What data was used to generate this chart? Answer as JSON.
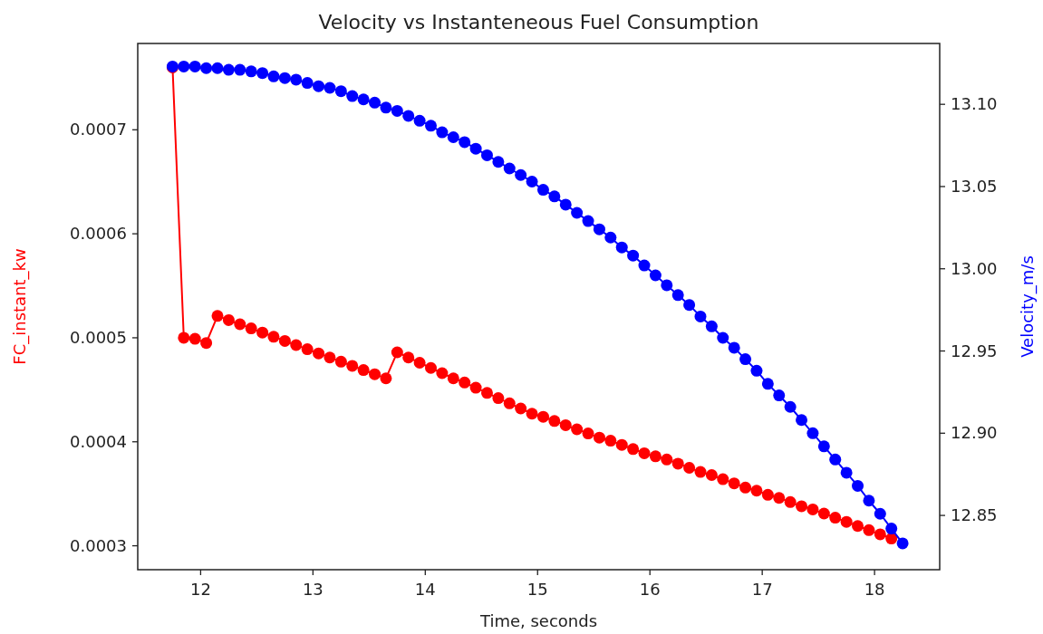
{
  "chart_data": {
    "type": "line",
    "title": "Velocity vs Instanteneous Fuel Consumption",
    "xlabel": "Time, seconds",
    "ylabel": "FC_instant_kw",
    "y2label": "Velocity_m/s",
    "x": [
      11.75,
      11.85,
      11.95,
      12.05,
      12.15,
      12.25,
      12.35,
      12.45,
      12.55,
      12.65,
      12.75,
      12.85,
      12.95,
      13.05,
      13.15,
      13.25,
      13.35,
      13.45,
      13.55,
      13.65,
      13.75,
      13.85,
      13.95,
      14.05,
      14.15,
      14.25,
      14.35,
      14.45,
      14.55,
      14.65,
      14.75,
      14.85,
      14.95,
      15.05,
      15.15,
      15.25,
      15.35,
      15.45,
      15.55,
      15.65,
      15.75,
      15.85,
      15.95,
      16.05,
      16.15,
      16.25,
      16.35,
      16.45,
      16.55,
      16.65,
      16.75,
      16.85,
      16.95,
      17.05,
      17.15,
      17.25,
      17.35,
      17.45,
      17.55,
      17.65,
      17.75,
      17.85,
      17.95,
      18.05,
      18.15,
      18.25
    ],
    "series": [
      {
        "color": "#ff0000",
        "values": [
          0.00076,
          0.0005,
          0.000499,
          0.000495,
          0.000521,
          0.000517,
          0.000513,
          0.000509,
          0.000505,
          0.000501,
          0.000497,
          0.000493,
          0.000489,
          0.000485,
          0.000481,
          0.000477,
          0.000473,
          0.000469,
          0.000465,
          0.000461,
          0.000486,
          0.000481,
          0.000476,
          0.000471,
          0.000466,
          0.000461,
          0.000457,
          0.000452,
          0.000447,
          0.000442,
          0.000437,
          0.000432,
          0.000427,
          0.000424,
          0.00042,
          0.000416,
          0.000412,
          0.000408,
          0.000404,
          0.000401,
          0.000397,
          0.000393,
          0.000389,
          0.000386,
          0.000383,
          0.000379,
          0.000375,
          0.000371,
          0.000368,
          0.000364,
          0.00036,
          0.000356,
          0.000353,
          0.000349,
          0.000346,
          0.000342,
          0.000338,
          0.000335,
          0.000331,
          0.000327,
          0.000323,
          0.000319,
          0.000315,
          0.000311,
          0.000307,
          null
        ]
      },
      {
        "color": "#0000ff",
        "axis": "y2",
        "values": [
          13.123,
          13.123,
          13.123,
          13.122,
          13.122,
          13.121,
          13.121,
          13.12,
          13.119,
          13.117,
          13.116,
          13.115,
          13.113,
          13.111,
          13.11,
          13.108,
          13.105,
          13.103,
          13.101,
          13.098,
          13.096,
          13.093,
          13.09,
          13.087,
          13.083,
          13.08,
          13.077,
          13.073,
          13.069,
          13.065,
          13.061,
          13.057,
          13.053,
          13.048,
          13.044,
          13.039,
          13.034,
          13.029,
          13.024,
          13.019,
          13.013,
          13.008,
          13.002,
          12.996,
          12.99,
          12.984,
          12.978,
          12.971,
          12.965,
          12.958,
          12.952,
          12.945,
          12.938,
          12.93,
          12.923,
          12.916,
          12.908,
          12.9,
          12.892,
          12.884,
          12.876,
          12.868,
          12.859,
          12.851,
          12.842,
          12.833
        ]
      }
    ],
    "xlim": [
      11.44,
      18.58
    ],
    "xticks": [
      12,
      13,
      14,
      15,
      16,
      17,
      18
    ],
    "ylim": [
      0.000277,
      0.000783
    ],
    "yticks": [
      0.0003,
      0.0004,
      0.0005,
      0.0006,
      0.0007
    ],
    "y2lim": [
      12.817,
      13.137
    ],
    "y2ticks": [
      {
        "value": 12.85,
        "label": "12.85"
      },
      {
        "value": 12.9,
        "label": "12.90"
      },
      {
        "value": 12.95,
        "label": "12.95"
      },
      {
        "value": 13,
        "label": "13.00"
      },
      {
        "value": 13.05,
        "label": "13.05"
      },
      {
        "value": 13.1,
        "label": "13.10"
      }
    ],
    "marker": "circle",
    "line_style": "solid"
  }
}
